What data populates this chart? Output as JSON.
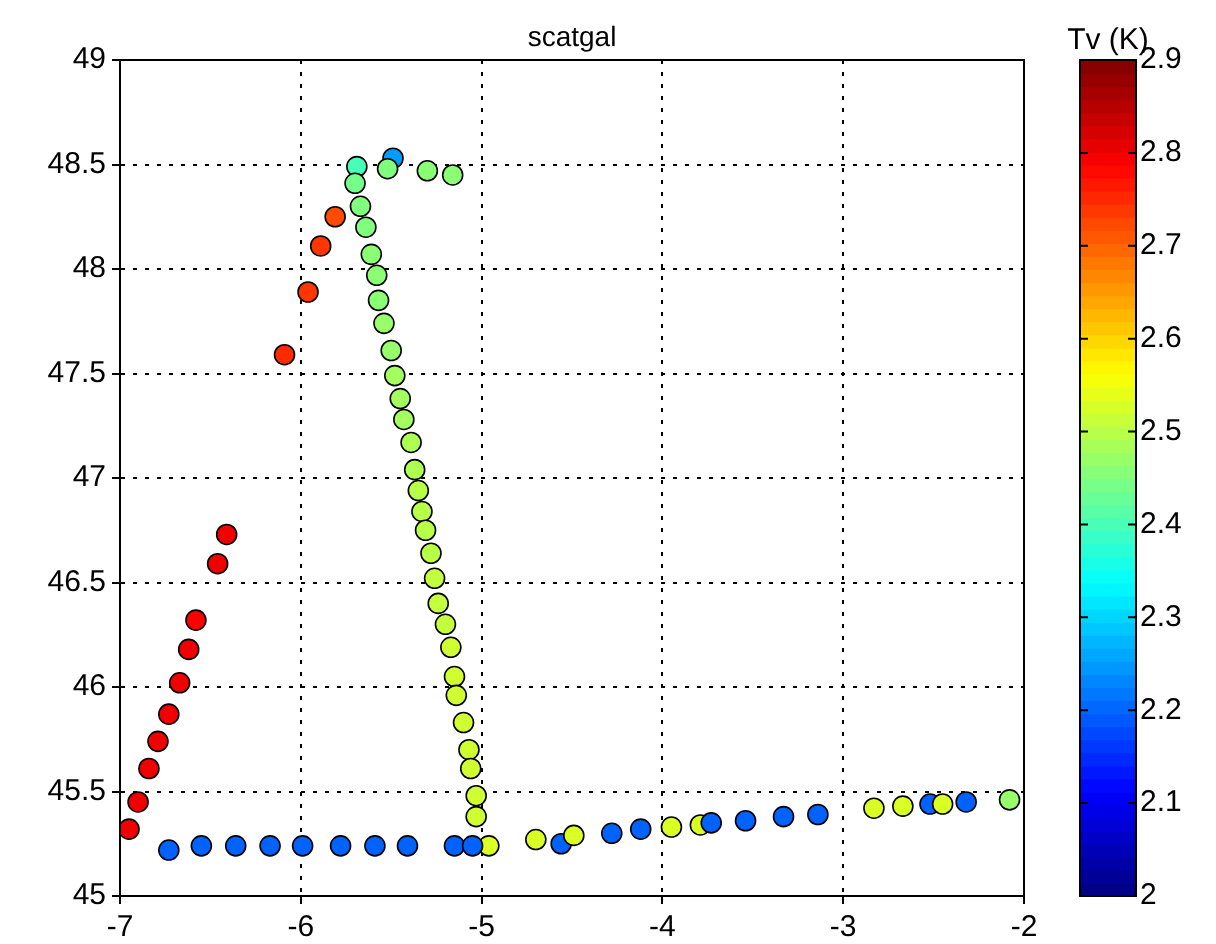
{
  "chart_data": {
    "type": "scatter",
    "title": "scatgal",
    "clabel": "Tv (K)",
    "marker": "circle",
    "grid": true,
    "xlim": [
      -7,
      -2
    ],
    "xticks": [
      -7,
      -6,
      -5,
      -4,
      -3,
      -2
    ],
    "ylim": [
      45,
      49
    ],
    "yticks": [
      45,
      45.5,
      46,
      46.5,
      47,
      47.5,
      48,
      48.5,
      49
    ],
    "clim": [
      2,
      2.9
    ],
    "cticks": [
      2,
      2.1,
      2.2,
      2.3,
      2.4,
      2.5,
      2.6,
      2.7,
      2.8,
      2.9
    ],
    "x": [
      -6.95,
      -6.9,
      -6.84,
      -6.79,
      -6.73,
      -6.67,
      -6.62,
      -6.58,
      -6.46,
      -6.41,
      -6.09,
      -5.96,
      -5.89,
      -5.81,
      -5.69,
      -5.49,
      -5.52,
      -5.3,
      -5.16,
      -5.7,
      -5.67,
      -5.64,
      -5.61,
      -5.58,
      -5.57,
      -5.54,
      -5.5,
      -5.48,
      -5.45,
      -5.43,
      -5.39,
      -5.37,
      -5.35,
      -5.33,
      -5.31,
      -5.28,
      -5.26,
      -5.24,
      -5.2,
      -5.17,
      -5.15,
      -5.14,
      -5.1,
      -5.07,
      -5.06,
      -5.03,
      -5.03,
      -4.96,
      -6.73,
      -6.55,
      -6.36,
      -6.17,
      -5.99,
      -5.78,
      -5.59,
      -5.41,
      -5.15,
      -5.05,
      -4.7,
      -4.56,
      -4.49,
      -4.28,
      -4.12,
      -3.95,
      -3.79,
      -3.73,
      -3.54,
      -3.33,
      -3.14,
      -2.83,
      -2.67,
      -2.52,
      -2.45,
      -2.32,
      -2.08
    ],
    "values": [
      45.32,
      45.45,
      45.61,
      45.74,
      45.87,
      46.02,
      46.18,
      46.32,
      46.59,
      46.73,
      47.59,
      47.89,
      48.11,
      48.25,
      48.49,
      48.53,
      48.48,
      48.47,
      48.45,
      48.41,
      48.3,
      48.2,
      48.07,
      47.97,
      47.85,
      47.74,
      47.61,
      47.49,
      47.38,
      47.28,
      47.17,
      47.04,
      46.94,
      46.84,
      46.75,
      46.64,
      46.52,
      46.4,
      46.3,
      46.19,
      46.05,
      45.96,
      45.83,
      45.7,
      45.61,
      45.48,
      45.38,
      45.24,
      45.22,
      45.24,
      45.24,
      45.24,
      45.24,
      45.24,
      45.24,
      45.24,
      45.24,
      45.24,
      45.27,
      45.25,
      45.29,
      45.3,
      45.32,
      45.33,
      45.34,
      45.35,
      45.36,
      45.38,
      45.39,
      45.42,
      45.43,
      45.44,
      45.44,
      45.45,
      45.46
    ],
    "cvalues": [
      2.8,
      2.8,
      2.8,
      2.8,
      2.8,
      2.8,
      2.8,
      2.79,
      2.8,
      2.8,
      2.75,
      2.74,
      2.74,
      2.72,
      2.4,
      2.25,
      2.45,
      2.46,
      2.46,
      2.44,
      2.45,
      2.45,
      2.46,
      2.46,
      2.46,
      2.47,
      2.47,
      2.48,
      2.48,
      2.48,
      2.49,
      2.49,
      2.5,
      2.5,
      2.5,
      2.5,
      2.51,
      2.51,
      2.51,
      2.52,
      2.52,
      2.52,
      2.52,
      2.52,
      2.52,
      2.52,
      2.52,
      2.53,
      2.2,
      2.2,
      2.2,
      2.2,
      2.2,
      2.2,
      2.2,
      2.2,
      2.2,
      2.2,
      2.53,
      2.2,
      2.53,
      2.2,
      2.2,
      2.53,
      2.53,
      2.2,
      2.2,
      2.2,
      2.2,
      2.53,
      2.53,
      2.2,
      2.53,
      2.2,
      2.47
    ]
  }
}
